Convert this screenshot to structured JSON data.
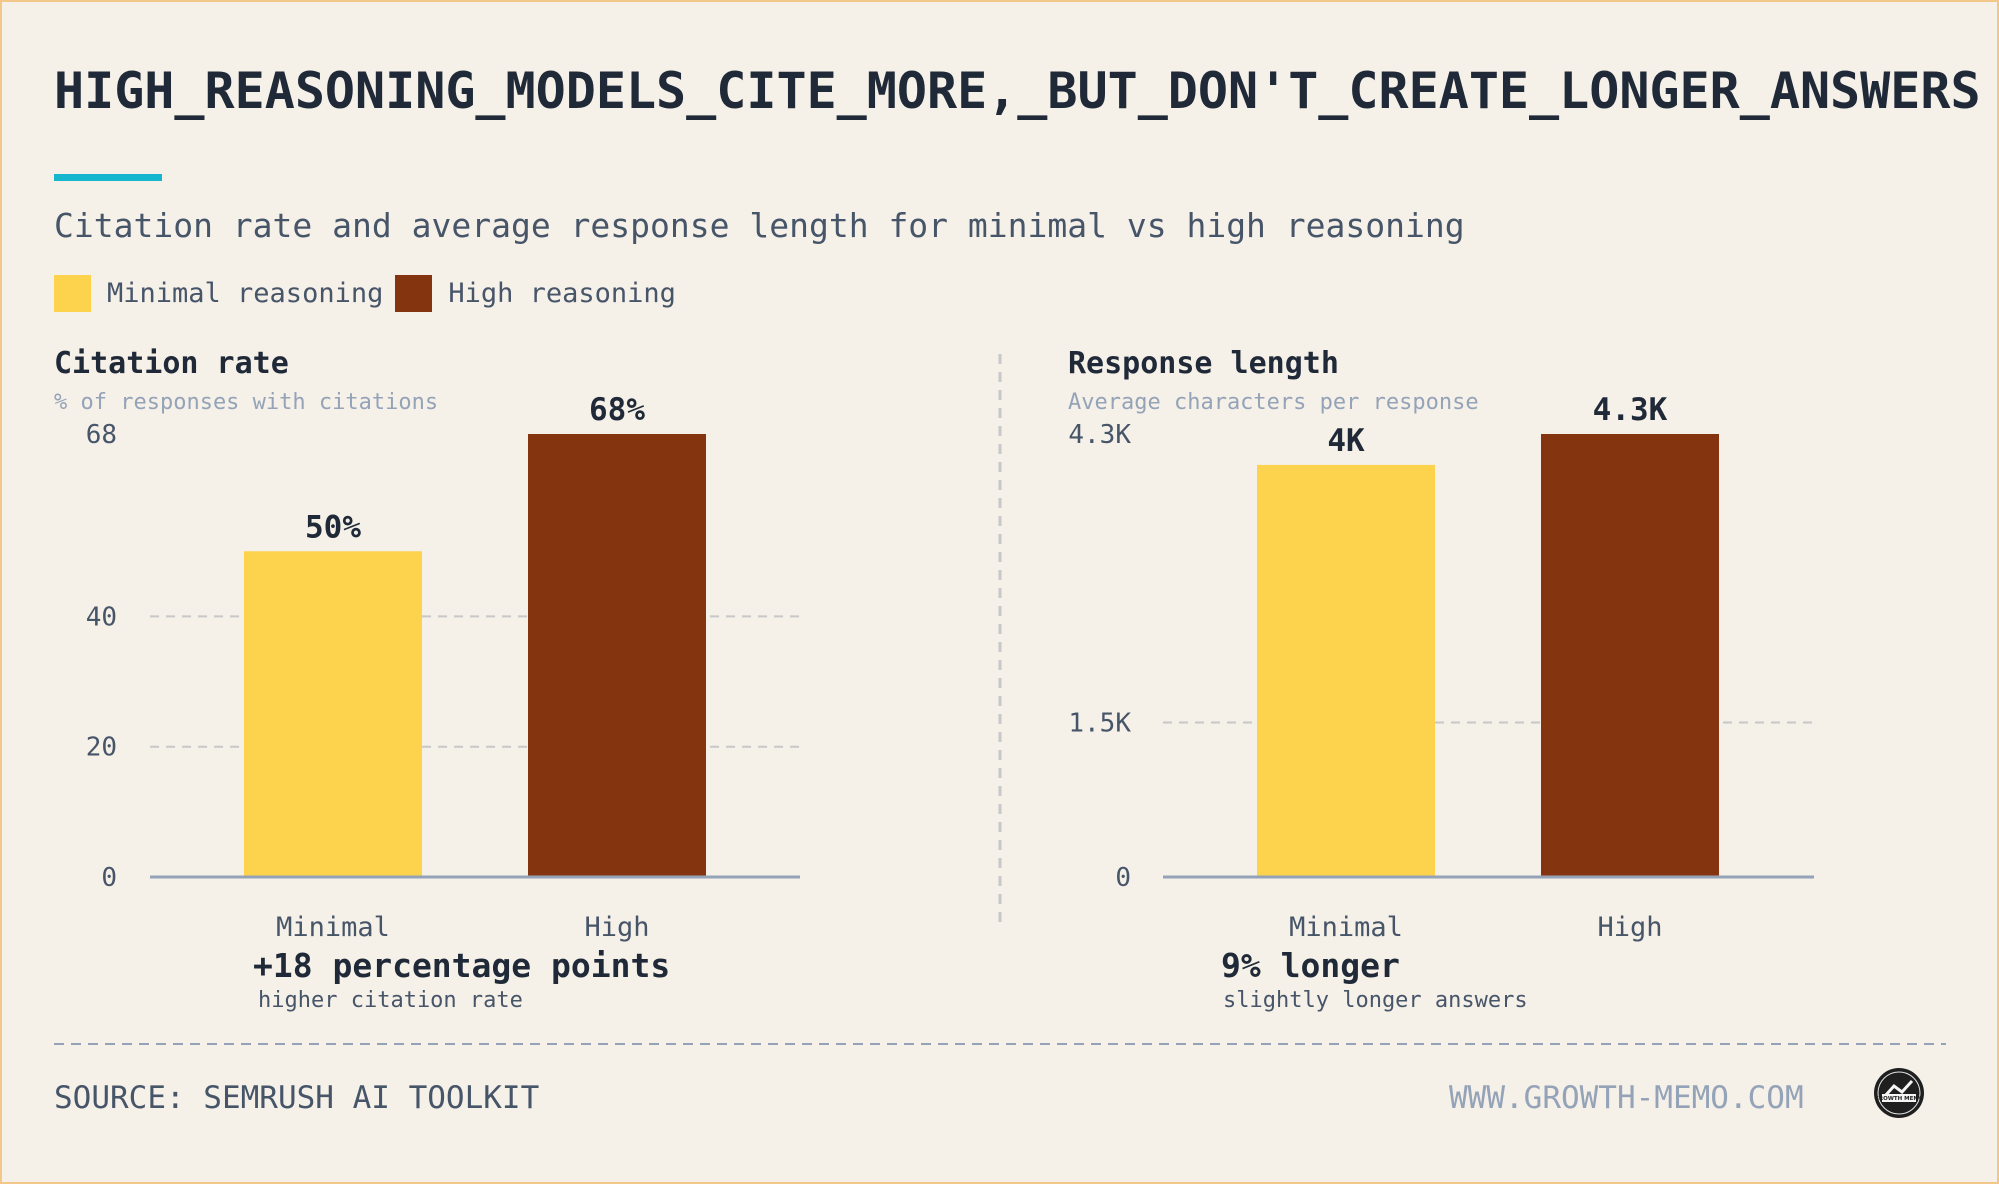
{
  "title": "HIGH_REASONING_MODELS_CITE_MORE,_BUT_DON'T_CREATE_LONGER_ANSWERS",
  "subtitle": "Citation rate and average response length for minimal vs high reasoning",
  "legend": [
    {
      "label": "Minimal reasoning",
      "color": "#fdd34d"
    },
    {
      "label": "High reasoning",
      "color": "#84350f"
    }
  ],
  "footer": {
    "source": "SOURCE: SEMRUSH AI TOOLKIT",
    "url": "WWW.GROWTH-MEMO.COM",
    "logo_icon": "growth-memo-logo-icon",
    "logo_text": "GROWTH MEMO"
  },
  "colors": {
    "minimal": "#fdd34d",
    "high": "#84350f",
    "accent": "#17b6cf",
    "grid": "#c8c8c8",
    "axis": "#94a3b8"
  },
  "chart_data": [
    {
      "type": "bar",
      "title": "Citation rate",
      "subtitle": "% of responses with citations",
      "categories": [
        "Minimal",
        "High"
      ],
      "values": [
        50,
        68
      ],
      "value_labels": [
        "50%",
        "68%"
      ],
      "yticks": [
        0,
        20,
        40,
        68
      ],
      "ytick_labels": [
        "0",
        "20",
        "40",
        "68"
      ],
      "ylim": [
        0,
        68
      ],
      "grid": true,
      "grid_values": [
        20,
        40
      ],
      "annotation": {
        "main": "+18 percentage points",
        "sub": "higher citation rate"
      }
    },
    {
      "type": "bar",
      "title": "Response length",
      "subtitle": "Average characters per response",
      "categories": [
        "Minimal",
        "High"
      ],
      "values": [
        4000,
        4300
      ],
      "value_labels": [
        "4K",
        "4.3K"
      ],
      "yticks": [
        0,
        1500,
        4300
      ],
      "ytick_labels": [
        "0",
        "1.5K",
        "4.3K"
      ],
      "ylim": [
        0,
        4300
      ],
      "grid": true,
      "grid_values": [
        1500
      ],
      "annotation": {
        "main": "9% longer",
        "sub": "slightly longer answers"
      }
    }
  ]
}
